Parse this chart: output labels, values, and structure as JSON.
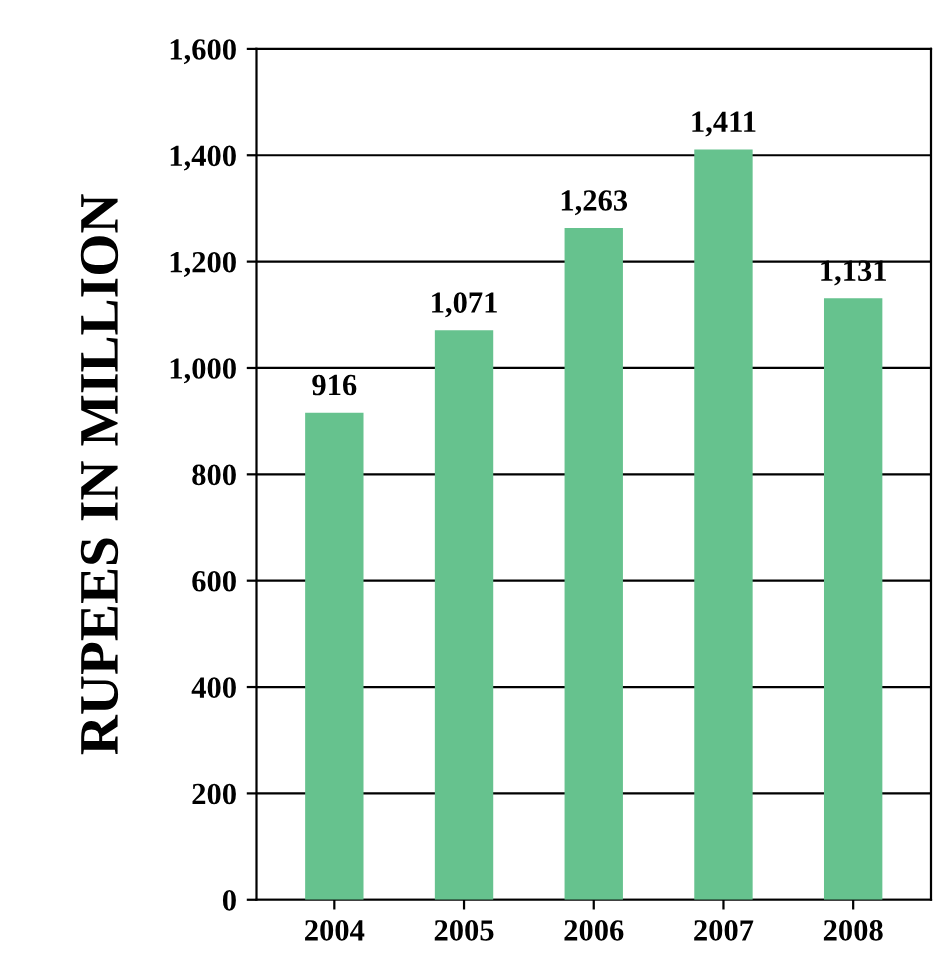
{
  "chart_data": {
    "type": "bar",
    "ylabel": "RUPEES IN MILLION",
    "categories": [
      "2004",
      "2005",
      "2006",
      "2007",
      "2008"
    ],
    "values": [
      916,
      1071,
      1263,
      1411,
      1131
    ],
    "value_labels": [
      "916",
      "1,071",
      "1,263",
      "1,411",
      "1,131"
    ],
    "color": "#66c28e",
    "ylim": [
      0,
      1600
    ],
    "yticks": [
      0,
      {
        "value": 200,
        "label": "200"
      },
      {
        "value": 400,
        "label": "400"
      },
      {
        "value": 600,
        "label": "600"
      },
      {
        "value": 800,
        "label": "800"
      },
      {
        "value": 1000,
        "label": "1,000"
      },
      {
        "value": 1200,
        "label": "1,200"
      },
      {
        "value": 1400,
        "label": "1,400"
      },
      {
        "value": 1600,
        "label": "1,600"
      }
    ],
    "grid": "y",
    "legend": false
  }
}
